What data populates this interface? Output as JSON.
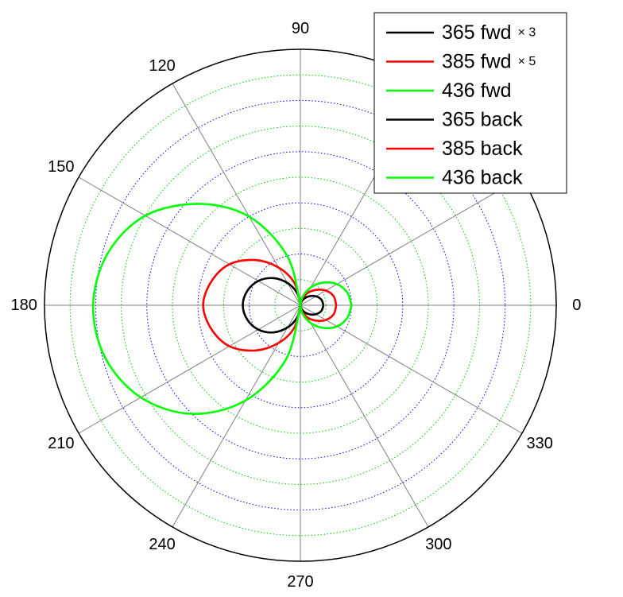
{
  "chart_data": {
    "type": "polar",
    "title": "",
    "angle_unit": "degrees",
    "theta_ticks": [
      0,
      30,
      60,
      90,
      120,
      150,
      180,
      210,
      240,
      270,
      300,
      330
    ],
    "theta_labels": [
      "0",
      "",
      "",
      "90",
      "120",
      "150",
      "180",
      "210",
      "240",
      "270",
      "300",
      "330"
    ],
    "r_max": 1.0,
    "r_grid": [
      0.1,
      0.2,
      0.3,
      0.4,
      0.5,
      0.6,
      0.7,
      0.8,
      0.9
    ],
    "grid": true,
    "legend_position": "top-right",
    "series": [
      {
        "name": "365 fwd",
        "multiplier_label": "× 3",
        "color": "#000000",
        "points": [
          [
            0,
            0.09
          ],
          [
            15,
            0.085
          ],
          [
            30,
            0.07
          ],
          [
            45,
            0.05
          ],
          [
            60,
            0.03
          ],
          [
            75,
            0.012
          ],
          [
            90,
            0.0
          ],
          [
            270,
            0.0
          ],
          [
            285,
            0.012
          ],
          [
            300,
            0.03
          ],
          [
            315,
            0.05
          ],
          [
            330,
            0.07
          ],
          [
            345,
            0.085
          ],
          [
            360,
            0.09
          ]
        ]
      },
      {
        "name": "385 fwd",
        "multiplier_label": "× 5",
        "color": "#ff0000",
        "points": [
          [
            0,
            0.14
          ],
          [
            15,
            0.135
          ],
          [
            30,
            0.115
          ],
          [
            45,
            0.085
          ],
          [
            60,
            0.055
          ],
          [
            75,
            0.025
          ],
          [
            90,
            0.0
          ],
          [
            270,
            0.0
          ],
          [
            285,
            0.025
          ],
          [
            300,
            0.055
          ],
          [
            315,
            0.085
          ],
          [
            330,
            0.115
          ],
          [
            345,
            0.135
          ],
          [
            360,
            0.14
          ]
        ]
      },
      {
        "name": "436 fwd",
        "color": "#00ff00",
        "points": [
          [
            0,
            0.2
          ],
          [
            15,
            0.19
          ],
          [
            30,
            0.165
          ],
          [
            45,
            0.125
          ],
          [
            60,
            0.08
          ],
          [
            75,
            0.035
          ],
          [
            90,
            0.0
          ],
          [
            270,
            0.0
          ],
          [
            285,
            0.035
          ],
          [
            300,
            0.08
          ],
          [
            315,
            0.125
          ],
          [
            330,
            0.165
          ],
          [
            345,
            0.19
          ],
          [
            360,
            0.2
          ]
        ]
      },
      {
        "name": "365 back",
        "color": "#000000",
        "points": [
          [
            90,
            0.0
          ],
          [
            105,
            0.05
          ],
          [
            120,
            0.1
          ],
          [
            135,
            0.15
          ],
          [
            150,
            0.19
          ],
          [
            165,
            0.215
          ],
          [
            180,
            0.225
          ],
          [
            195,
            0.215
          ],
          [
            210,
            0.19
          ],
          [
            225,
            0.15
          ],
          [
            240,
            0.1
          ],
          [
            255,
            0.05
          ],
          [
            270,
            0.0
          ]
        ]
      },
      {
        "name": "385 back",
        "color": "#ff0000",
        "points": [
          [
            90,
            0.0
          ],
          [
            105,
            0.09
          ],
          [
            120,
            0.17
          ],
          [
            135,
            0.25
          ],
          [
            150,
            0.32
          ],
          [
            165,
            0.36
          ],
          [
            180,
            0.38
          ],
          [
            195,
            0.36
          ],
          [
            210,
            0.32
          ],
          [
            225,
            0.25
          ],
          [
            240,
            0.17
          ],
          [
            255,
            0.09
          ],
          [
            270,
            0.0
          ]
        ]
      },
      {
        "name": "436 back",
        "color": "#00ff00",
        "points": [
          [
            90,
            0.0
          ],
          [
            105,
            0.2
          ],
          [
            120,
            0.4
          ],
          [
            135,
            0.56
          ],
          [
            150,
            0.7
          ],
          [
            165,
            0.78
          ],
          [
            180,
            0.81
          ],
          [
            195,
            0.79
          ],
          [
            210,
            0.72
          ],
          [
            225,
            0.6
          ],
          [
            240,
            0.43
          ],
          [
            255,
            0.22
          ],
          [
            270,
            0.0
          ]
        ]
      }
    ],
    "legend_entries": [
      {
        "label": "365 fwd",
        "suffix": "× 3",
        "color": "#000000"
      },
      {
        "label": "385 fwd",
        "suffix": "× 5",
        "color": "#ff0000"
      },
      {
        "label": "436 fwd",
        "suffix": "",
        "color": "#00ff00"
      },
      {
        "label": "365 back",
        "suffix": "",
        "color": "#000000"
      },
      {
        "label": "385 back",
        "suffix": "",
        "color": "#ff0000"
      },
      {
        "label": "436 back",
        "suffix": "",
        "color": "#00ff00"
      }
    ],
    "grid_colors": {
      "outer": "#000000",
      "spoke": "#808080",
      "ring_odd": "#00cc00",
      "ring_even": "#0000ff"
    }
  }
}
